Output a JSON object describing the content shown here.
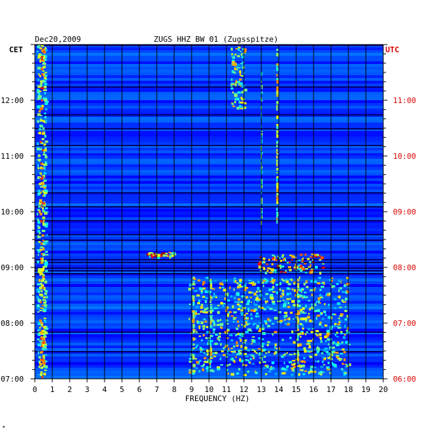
{
  "chart_data": {
    "type": "heatmap",
    "date": "Dec20,2009",
    "title": "ZUGS HHZ BW 01 (Zugsspitze)",
    "xlabel": "FREQUENCY (HZ)",
    "left_axis_label": "CET",
    "right_axis_label": "UTC",
    "xlim": [
      0,
      20
    ],
    "x_ticks": [
      "0",
      "1",
      "2",
      "3",
      "4",
      "5",
      "6",
      "7",
      "8",
      "9",
      "10",
      "11",
      "12",
      "13",
      "14",
      "15",
      "16",
      "17",
      "18",
      "19",
      "20"
    ],
    "y_range_cet": [
      "07:00",
      "13:00"
    ],
    "y_ticks_cet": [
      "12:00",
      "11:00",
      "10:00",
      "09:00",
      "08:00",
      "07:00"
    ],
    "y_ticks_utc": [
      "11:00",
      "10:00",
      "09:00",
      "08:00",
      "07:00",
      "06:00"
    ],
    "corner_mark": "*",
    "colors": {
      "background": "#0000aa",
      "utc_label": "#dd0000",
      "frame": "#000000"
    },
    "features": [
      {
        "type": "low_frequency_band",
        "freq_range_hz": [
          0.1,
          0.6
        ],
        "time_range_cet": [
          "07:00",
          "13:00"
        ],
        "intensity": "high"
      },
      {
        "type": "narrow_line",
        "freq_hz": 13.9,
        "time_range_cet": [
          "09:50",
          "13:00"
        ],
        "intensity": "medium"
      },
      {
        "type": "narrow_line",
        "freq_hz": 13.0,
        "time_range_cet": [
          "09:50",
          "12:30"
        ],
        "intensity": "low"
      },
      {
        "type": "broadband_cluster",
        "freq_range_hz": [
          11.2,
          12.0
        ],
        "time_range_cet": [
          "11:50",
          "13:00"
        ],
        "intensity": "medium"
      },
      {
        "type": "burst",
        "freq_range_hz": [
          6.3,
          8.0
        ],
        "time_range_cet": [
          "09:12",
          "09:17"
        ],
        "intensity": "high"
      },
      {
        "type": "burst",
        "freq_range_hz": [
          12.8,
          16.5
        ],
        "time_range_cet": [
          "08:55",
          "09:15"
        ],
        "intensity": "high"
      },
      {
        "type": "broadband_cluster",
        "freq_range_hz": [
          8.8,
          18.0
        ],
        "time_range_cet": [
          "07:05",
          "08:50"
        ],
        "intensity": "medium"
      },
      {
        "type": "narrow_line",
        "freq_hz": 9.1,
        "time_range_cet": [
          "07:20",
          "08:50"
        ],
        "intensity": "medium"
      },
      {
        "type": "narrow_line",
        "freq_hz": 10.1,
        "time_range_cet": [
          "07:20",
          "08:50"
        ],
        "intensity": "medium"
      },
      {
        "type": "narrow_line",
        "freq_hz": 15.1,
        "time_range_cet": [
          "07:10",
          "08:50"
        ],
        "intensity": "medium"
      }
    ]
  }
}
